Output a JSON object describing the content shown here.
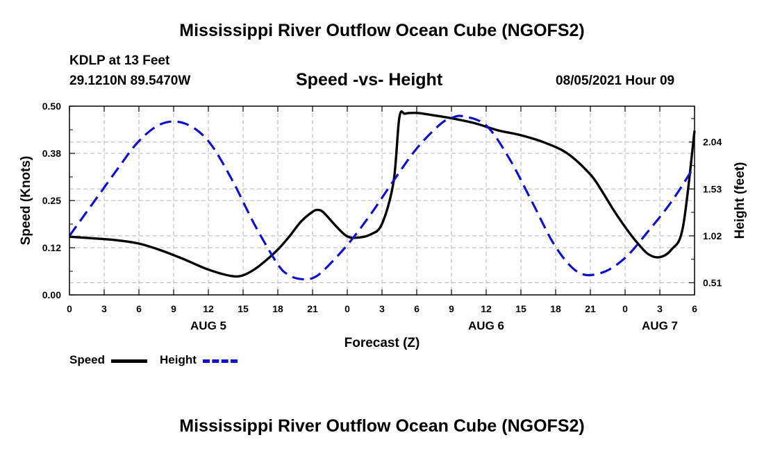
{
  "header": {
    "title": "Mississippi River Outflow Ocean Cube (NGOFS2)",
    "station": "KDLP at 13 Feet",
    "coords": "29.1210N  89.5470W",
    "subtitle": "Speed -vs- Height",
    "datetime": "08/05/2021 Hour 09"
  },
  "footer": {
    "title": "Mississippi River Outflow Ocean Cube (NGOFS2)"
  },
  "legend": {
    "speed_label": "Speed",
    "height_label": "Height"
  },
  "colors": {
    "speed": "#000000",
    "height": "#1010c8",
    "grid": "#b4b4b4"
  },
  "chart_data": {
    "type": "line",
    "xlabel": "Forecast (Z)",
    "ylabel_left": "Speed (Knots)",
    "ylabel_right": "Height (feet)",
    "x_range_hours": [
      0,
      54
    ],
    "x_tick_hours": [
      0,
      3,
      6,
      9,
      12,
      15,
      18,
      21,
      24,
      27,
      30,
      33,
      36,
      39,
      42,
      45,
      48,
      51,
      54
    ],
    "x_tick_labels": [
      "0",
      "3",
      "6",
      "9",
      "12",
      "15",
      "18",
      "21",
      "0",
      "3",
      "6",
      "9",
      "12",
      "15",
      "18",
      "21",
      "0",
      "3",
      "6"
    ],
    "day_labels": [
      {
        "label": "AUG 5",
        "hour": 12
      },
      {
        "label": "AUG 6",
        "hour": 36
      },
      {
        "label": "AUG 7",
        "hour": 51
      }
    ],
    "left_axis": {
      "ylim": [
        0,
        0.5
      ],
      "ticks": [
        0.0,
        0.125,
        0.25,
        0.375,
        0.5
      ],
      "tick_labels": [
        "0.00",
        "0.12",
        "0.25",
        "0.38",
        "0.50"
      ]
    },
    "right_axis": {
      "ylim": [
        0.378,
        2.43
      ],
      "ticks": [
        0.51,
        1.02,
        1.53,
        2.04
      ],
      "tick_labels": [
        "0.51",
        "1.02",
        "1.53",
        "2.04"
      ]
    },
    "grid": true,
    "series": [
      {
        "name": "Speed",
        "axis": "left",
        "style": "solid",
        "x": [
          0,
          2,
          4,
          6,
          8,
          10,
          12,
          14,
          15,
          16,
          17,
          18,
          19,
          20,
          21,
          21.5,
          22,
          23,
          24,
          25,
          26,
          27,
          28,
          28.5,
          29,
          30,
          31,
          33,
          35,
          37,
          39,
          41,
          43,
          45,
          46,
          47,
          48,
          49,
          50,
          51,
          52,
          53,
          54
        ],
        "y": [
          0.154,
          0.15,
          0.145,
          0.136,
          0.117,
          0.093,
          0.067,
          0.05,
          0.052,
          0.068,
          0.092,
          0.12,
          0.155,
          0.194,
          0.22,
          0.225,
          0.217,
          0.183,
          0.155,
          0.152,
          0.16,
          0.188,
          0.3,
          0.47,
          0.48,
          0.482,
          0.478,
          0.468,
          0.455,
          0.436,
          0.423,
          0.404,
          0.375,
          0.319,
          0.275,
          0.225,
          0.18,
          0.14,
          0.108,
          0.1,
          0.12,
          0.18,
          0.435
        ]
      },
      {
        "name": "Height",
        "axis": "right",
        "style": "dashed",
        "x": [
          0,
          2,
          4,
          6,
          8,
          10,
          12,
          14,
          16,
          18,
          19,
          20,
          21,
          22,
          24,
          26,
          28,
          30,
          32,
          33,
          34,
          36,
          38,
          40,
          42,
          44,
          46,
          48,
          50,
          52,
          54
        ],
        "y": [
          1.02,
          1.37,
          1.72,
          2.05,
          2.24,
          2.24,
          2.05,
          1.64,
          1.14,
          0.71,
          0.59,
          0.55,
          0.56,
          0.65,
          0.92,
          1.25,
          1.62,
          1.97,
          2.23,
          2.3,
          2.32,
          2.22,
          1.86,
          1.38,
          0.9,
          0.62,
          0.62,
          0.78,
          1.07,
          1.39,
          1.78
        ]
      }
    ]
  }
}
